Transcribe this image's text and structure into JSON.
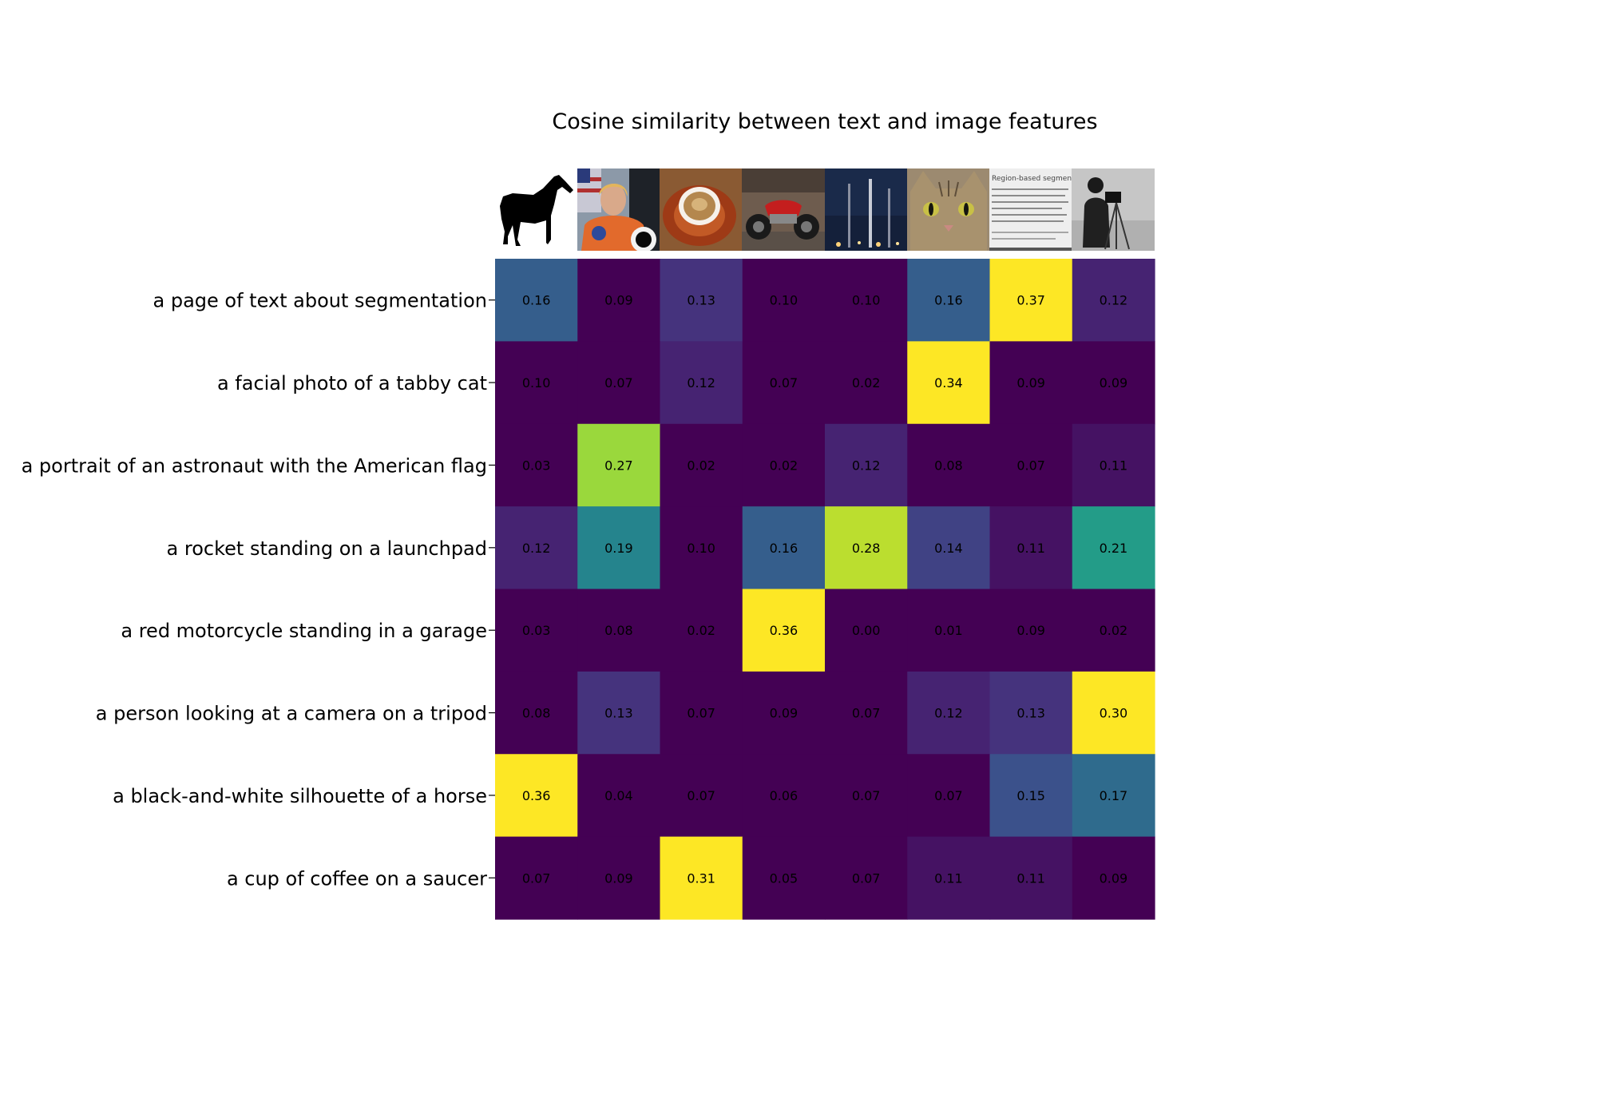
{
  "chart_data": {
    "type": "heatmap",
    "title": "Cosine similarity between text and image features",
    "image_columns": [
      "horse-silhouette",
      "astronaut-portrait",
      "coffee-cup",
      "red-motorcycle",
      "rocket-launchpad",
      "tabby-cat",
      "segmentation-text-page",
      "camera-person"
    ],
    "image_text": "Region-based segmentation",
    "rows": [
      "a page of text about segmentation",
      "a facial photo of a tabby cat",
      "a portrait of an astronaut with the American flag",
      "a rocket standing on a launchpad",
      "a red motorcycle standing in a garage",
      "a person looking at a camera on a tripod",
      "a black-and-white silhouette of a horse",
      "a cup of coffee on a saucer"
    ],
    "values": [
      [
        0.16,
        0.09,
        0.13,
        0.1,
        0.1,
        0.16,
        0.37,
        0.12
      ],
      [
        0.1,
        0.07,
        0.12,
        0.07,
        0.02,
        0.34,
        0.09,
        0.09
      ],
      [
        0.03,
        0.27,
        0.02,
        0.02,
        0.12,
        0.08,
        0.07,
        0.11
      ],
      [
        0.12,
        0.19,
        0.1,
        0.16,
        0.28,
        0.14,
        0.11,
        0.21
      ],
      [
        0.03,
        0.08,
        0.02,
        0.36,
        0.0,
        0.01,
        0.09,
        0.02
      ],
      [
        0.08,
        0.13,
        0.07,
        0.09,
        0.07,
        0.12,
        0.13,
        0.3
      ],
      [
        0.36,
        0.04,
        0.07,
        0.06,
        0.07,
        0.07,
        0.15,
        0.17
      ],
      [
        0.07,
        0.09,
        0.31,
        0.05,
        0.07,
        0.11,
        0.11,
        0.09
      ]
    ],
    "color_range": [
      0.1,
      0.3
    ],
    "colormap": "viridis",
    "grid": false
  }
}
